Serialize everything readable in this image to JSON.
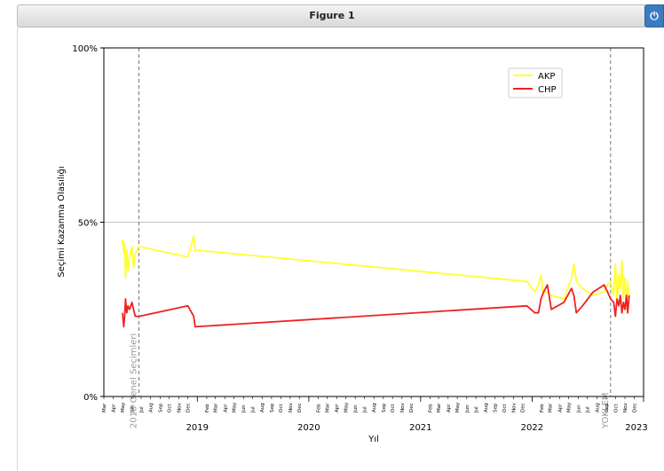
{
  "window": {
    "title": "Figure 1",
    "power_icon": "power-icon"
  },
  "chart_data": {
    "type": "line",
    "ylabel": "Seçimi Kazanma Olasılığı",
    "xlabel": "Yıl",
    "ylim": [
      0,
      100
    ],
    "yticks": [
      "0%",
      "50%",
      "100%"
    ],
    "grid": "horizontal line at 50%",
    "legend_position": "top-right",
    "x_range": [
      "2018-03-01",
      "2023-01-01"
    ],
    "month_ticks": [
      "Mar",
      "Apr",
      "May",
      "Jun",
      "Jul",
      "Aug",
      "Sep",
      "Oct",
      "Nov",
      "Dec",
      "Jan",
      "Feb"
    ],
    "year_labels": [
      "2019",
      "2020",
      "2021",
      "2022",
      "2023"
    ],
    "events": [
      {
        "date": "2018-06-24",
        "label": "2018 Genel Seçimleri"
      },
      {
        "date": "2022-09-15",
        "label": "YOKLEM"
      }
    ],
    "series": [
      {
        "name": "AKP",
        "color": "#ffff33",
        "points": [
          [
            "2018-05-01",
            45
          ],
          [
            "2018-05-05",
            41
          ],
          [
            "2018-05-08",
            44
          ],
          [
            "2018-05-11",
            34
          ],
          [
            "2018-05-15",
            42
          ],
          [
            "2018-05-19",
            36
          ],
          [
            "2018-05-24",
            40
          ],
          [
            "2018-06-01",
            43
          ],
          [
            "2018-06-06",
            37
          ],
          [
            "2018-06-12",
            41
          ],
          [
            "2018-06-18",
            42
          ],
          [
            "2018-06-25",
            43
          ],
          [
            "2018-12-01",
            40
          ],
          [
            "2018-12-20",
            46
          ],
          [
            "2018-12-25",
            42
          ],
          [
            "2021-12-15",
            33
          ],
          [
            "2022-01-10",
            30
          ],
          [
            "2022-01-22",
            32
          ],
          [
            "2022-01-30",
            35
          ],
          [
            "2022-02-05",
            30
          ],
          [
            "2022-02-20",
            30
          ],
          [
            "2022-03-05",
            29
          ],
          [
            "2022-04-15",
            28
          ],
          [
            "2022-05-10",
            34
          ],
          [
            "2022-05-18",
            38
          ],
          [
            "2022-05-26",
            33
          ],
          [
            "2022-06-15",
            31
          ],
          [
            "2022-07-20",
            29
          ],
          [
            "2022-08-25",
            30
          ],
          [
            "2022-09-05",
            32
          ],
          [
            "2022-09-15",
            33
          ],
          [
            "2022-09-25",
            29
          ],
          [
            "2022-10-01",
            38
          ],
          [
            "2022-10-06",
            27
          ],
          [
            "2022-10-12",
            35
          ],
          [
            "2022-10-17",
            31
          ],
          [
            "2022-10-22",
            39
          ],
          [
            "2022-10-27",
            28
          ],
          [
            "2022-11-01",
            34
          ],
          [
            "2022-11-06",
            25
          ],
          [
            "2022-11-10",
            33
          ],
          [
            "2022-11-15",
            27
          ]
        ]
      },
      {
        "name": "CHP",
        "color": "#ee2222",
        "points": [
          [
            "2018-05-01",
            24
          ],
          [
            "2018-05-05",
            20
          ],
          [
            "2018-05-08",
            23
          ],
          [
            "2018-05-11",
            28
          ],
          [
            "2018-05-15",
            24
          ],
          [
            "2018-05-19",
            26
          ],
          [
            "2018-05-24",
            25
          ],
          [
            "2018-06-01",
            27
          ],
          [
            "2018-06-06",
            25
          ],
          [
            "2018-06-12",
            23
          ],
          [
            "2018-06-18",
            23
          ],
          [
            "2018-06-25",
            23
          ],
          [
            "2018-12-01",
            26
          ],
          [
            "2018-12-20",
            23
          ],
          [
            "2018-12-25",
            20
          ],
          [
            "2021-12-15",
            26
          ],
          [
            "2022-01-10",
            24
          ],
          [
            "2022-01-22",
            24
          ],
          [
            "2022-01-30",
            28
          ],
          [
            "2022-02-08",
            30
          ],
          [
            "2022-02-20",
            32
          ],
          [
            "2022-03-05",
            25
          ],
          [
            "2022-04-15",
            27
          ],
          [
            "2022-05-10",
            31
          ],
          [
            "2022-05-18",
            29
          ],
          [
            "2022-05-26",
            24
          ],
          [
            "2022-06-15",
            26
          ],
          [
            "2022-07-20",
            30
          ],
          [
            "2022-08-25",
            32
          ],
          [
            "2022-09-05",
            30
          ],
          [
            "2022-09-15",
            28
          ],
          [
            "2022-09-25",
            27
          ],
          [
            "2022-10-01",
            23
          ],
          [
            "2022-10-06",
            28
          ],
          [
            "2022-10-12",
            26
          ],
          [
            "2022-10-17",
            29
          ],
          [
            "2022-10-22",
            24
          ],
          [
            "2022-10-27",
            27
          ],
          [
            "2022-11-01",
            25
          ],
          [
            "2022-11-06",
            29
          ],
          [
            "2022-11-10",
            24
          ],
          [
            "2022-11-15",
            29
          ]
        ]
      }
    ]
  }
}
